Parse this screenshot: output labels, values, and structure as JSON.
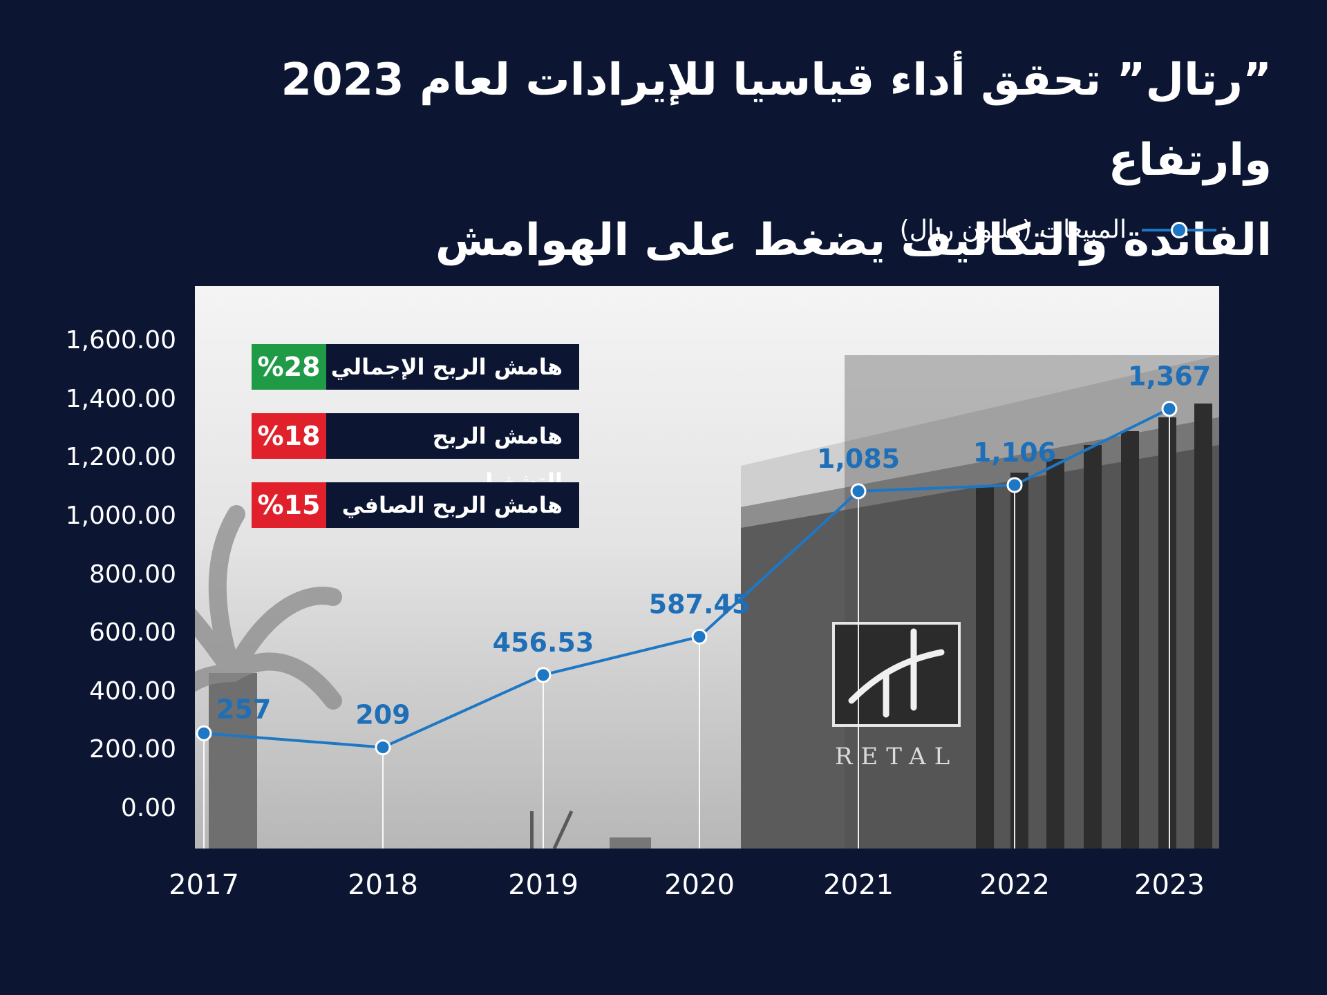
{
  "title_line1": "”رتال” تحقق أداء قياسيا للإيرادات لعام 2023 وارتفاع",
  "title_line2": "الفائدة والتكاليف يضغط على الهوامش",
  "legend": {
    "label": "المبيعات (مليون ريال)",
    "color": "#1e77c4"
  },
  "margins": [
    {
      "label": "هامش الربح الإجمالي",
      "value": "%28",
      "color": "#1f9a47"
    },
    {
      "label": "هامش الربح التشغيلي",
      "value": "%18",
      "color": "#e0202a"
    },
    {
      "label": "هامش الربح الصافي",
      "value": "%15",
      "color": "#e0202a"
    }
  ],
  "photo": {
    "logo_text": "RETAL"
  },
  "chart_data": {
    "type": "line",
    "categories": [
      "2017",
      "2018",
      "2019",
      "2020",
      "2021",
      "2022",
      "2023"
    ],
    "series": [
      {
        "name": "المبيعات (مليون ريال)",
        "values": [
          257,
          209,
          456.53,
          587.45,
          1085,
          1106,
          1367
        ]
      }
    ],
    "data_labels": [
      "257",
      "209",
      "456.53",
      "587.45",
      "1,085",
      "1,106",
      "1,367"
    ],
    "y_ticks": [
      "0.00",
      "200.00",
      "400.00",
      "600.00",
      "800.00",
      "1,000.00",
      "1,200.00",
      "1,400.00",
      "1,600.00"
    ],
    "ylim": [
      0,
      1600
    ],
    "line_color": "#1e77c4",
    "label_color": "#1e6fb8",
    "grid": false
  }
}
